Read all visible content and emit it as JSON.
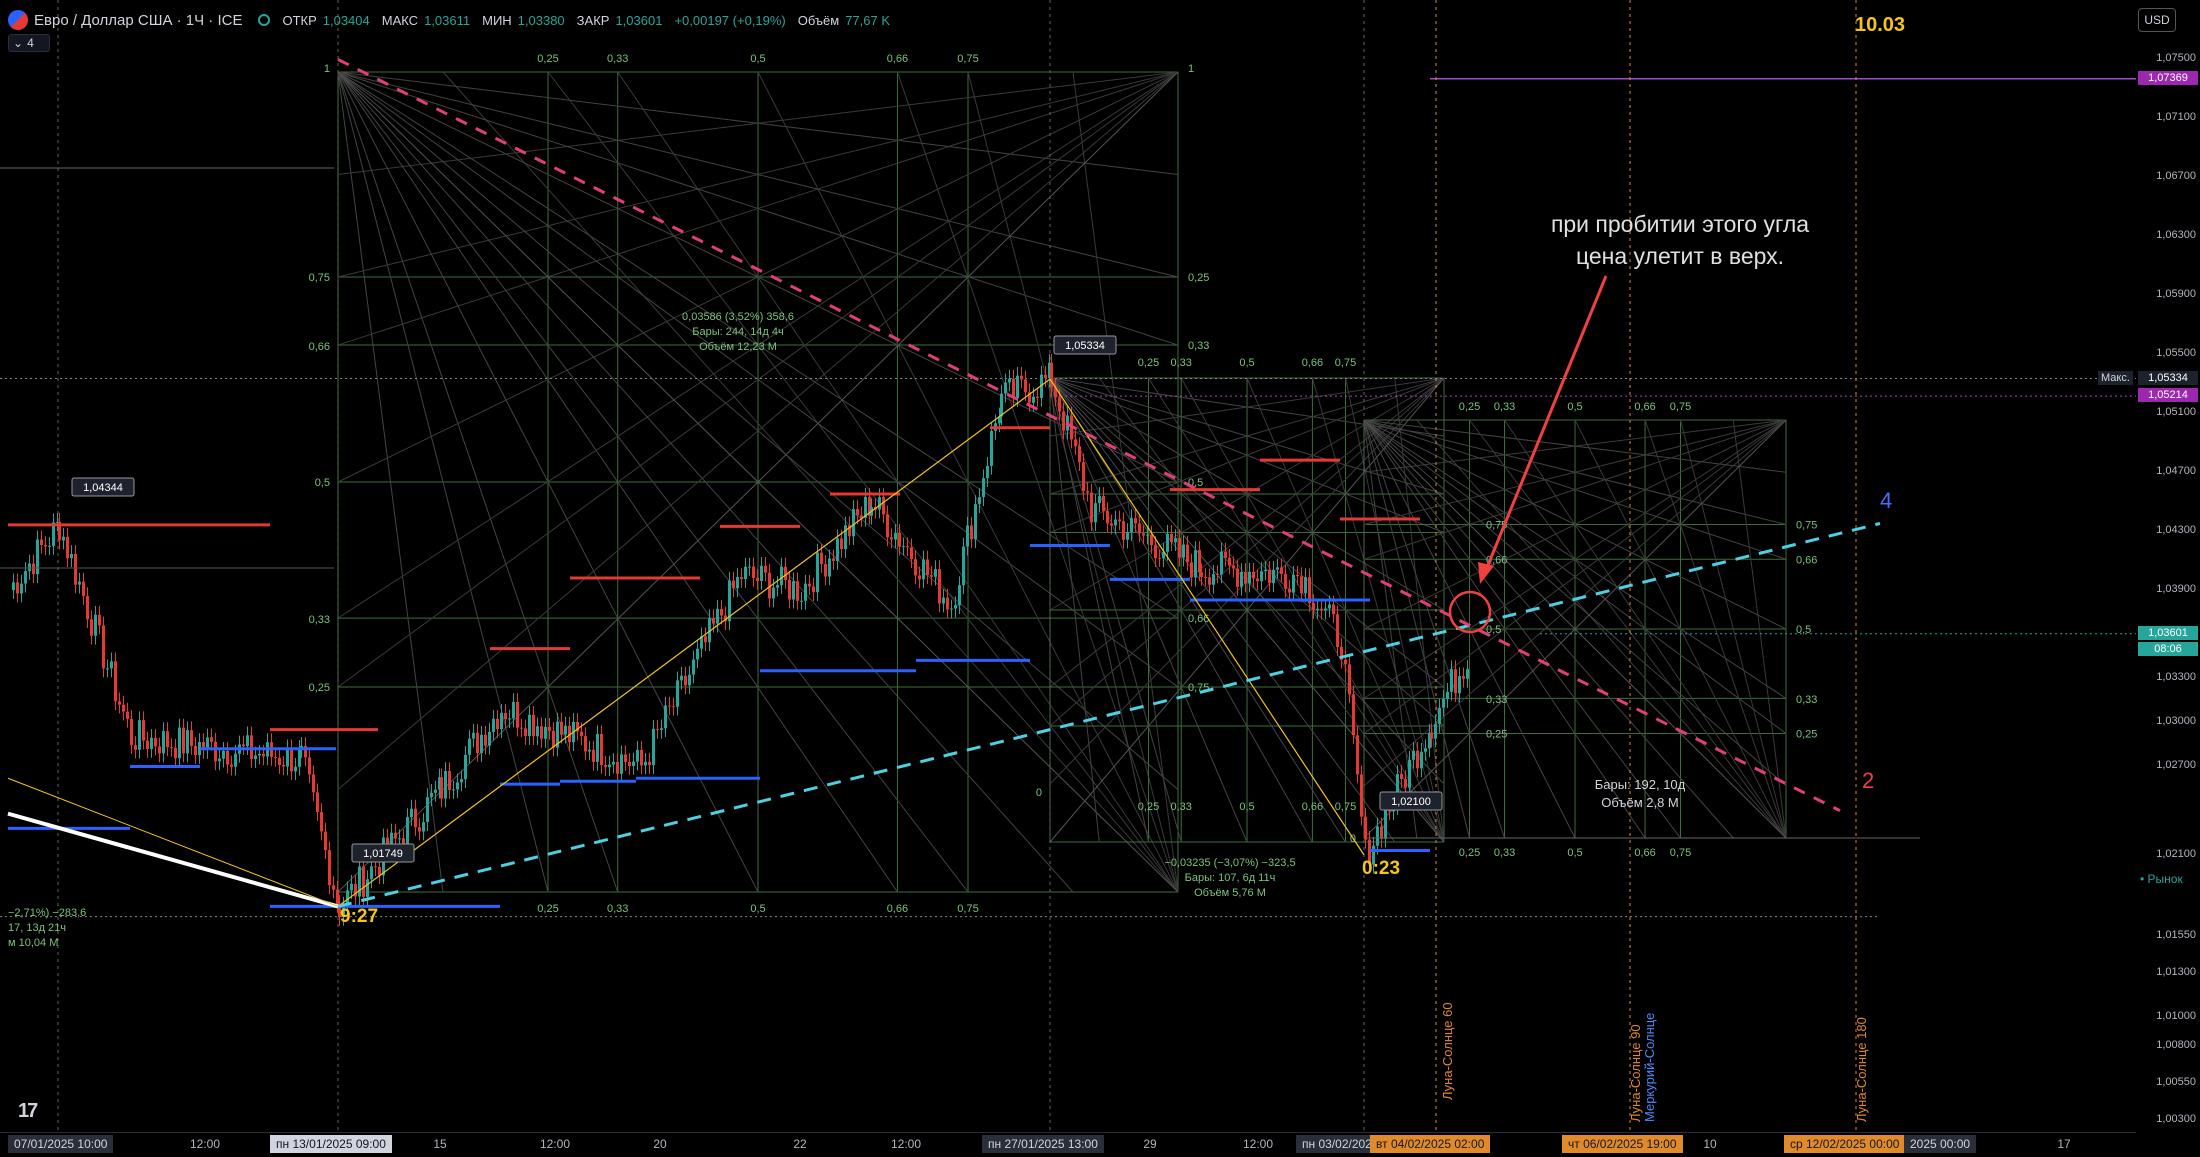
{
  "header": {
    "title": "Евро / Доллар США · 1Ч · ICE",
    "open_label": "ОТКР",
    "open": "1,03404",
    "high_label": "МАКС",
    "high": "1,03611",
    "low_label": "МИН",
    "low": "1,03380",
    "close_label": "ЗАКР",
    "close": "1,03601",
    "change": "+0,00197 (+0,19%)",
    "volume_label": "Объём",
    "volume": "77,67 K",
    "legend_count": "4",
    "currency": "USD"
  },
  "colors": {
    "accent_green": "#26a69a",
    "up_red": "#e53935",
    "support_blue": "#2962ff",
    "gann_green": "#3c6e3c",
    "cyan_trend": "#4dd0e1",
    "pink_trend": "#e0407a",
    "yellow_line": "#f5c518",
    "annotation_red": "#f04040"
  },
  "price_axis": {
    "labels": [
      "1,07500",
      "1,07100",
      "1,06700",
      "1,06300",
      "1,05900",
      "1,05500",
      "1,05100",
      "1,04700",
      "1,04300",
      "1,03900",
      "1,03300",
      "1,03000",
      "1,02700",
      "1,02100",
      "1,01550",
      "1,01300",
      "1,01000",
      "1,00800",
      "1,00550",
      "1,00300"
    ],
    "badges": [
      {
        "text": "1,07369",
        "bg": "#9c27b0",
        "color": "#ffffff"
      },
      {
        "text": "1,05334",
        "bg": "#1e222d",
        "color": "#ffffff"
      },
      {
        "text": "1,05214",
        "bg": "#9c27b0",
        "color": "#ffffff"
      },
      {
        "text": "1,03601",
        "bg": "#26a69a",
        "color": "#ffffff"
      },
      {
        "text": "08:06",
        "bg": "#26a69a",
        "color": "#ffffff"
      }
    ],
    "max_label": "Макс.",
    "market_label": "• Рынок"
  },
  "time_axis": {
    "ticks": [
      "12:00",
      "15",
      "12:00",
      "20",
      "22",
      "12:00",
      "29",
      "12:00",
      "10",
      "17"
    ],
    "boxes": [
      {
        "text": "07/01/2025  10:00",
        "style": "dark"
      },
      {
        "text": "пн 13/01/2025  09:00",
        "style": "light"
      },
      {
        "text": "пн 27/01/2025  13:00",
        "style": "dark"
      },
      {
        "text": "пн 03/02/2025",
        "style": "dark"
      },
      {
        "text": "вт 04/02/2025  02:00",
        "style": "orange"
      },
      {
        "text": "чт 06/02/2025  19:00",
        "style": "orange"
      },
      {
        "text": "ср 12/02/2025  00:00",
        "style": "orange"
      },
      {
        "text": "2025  00:00",
        "style": "dark"
      }
    ]
  },
  "annotations": {
    "main_note": "при пробитии этого угла цена улетит в верх.",
    "date_note": "10.03",
    "label_927": "9:27",
    "label_023": "0:23",
    "label_4": "4",
    "label_2": "2",
    "vertical_labels": [
      "Луна-Солнце 60",
      "Луна-Солнце 90",
      "Меркурий-Солнце",
      "Луна-Солнце 180"
    ]
  },
  "stats": {
    "box1": [
      "0,03586 (3,52%) 358,6",
      "Бары: 244, 14д 4ч",
      "Объём 12,23 M"
    ],
    "box2": [
      "−0,03235 (−3,07%) −323,5",
      "Бары: 107, 6д 11ч",
      "Объём 5,76 M"
    ],
    "box3": [
      "−2,71%) −283,6",
      "17, 13д 21ч",
      "м 10,04 M"
    ],
    "box4": [
      "Бары: 192, 10д",
      "Объём 2,8 M"
    ]
  },
  "chart_data": {
    "type": "candlestick",
    "symbol": "EUR/USD",
    "timeframe": "1H",
    "ylim": [
      1.003,
      1.077
    ],
    "price_callouts": [
      "1,05334",
      "1,04344",
      "1,01749",
      "1,02100"
    ],
    "levels": {
      "max": 1.05334,
      "purple_upper": 1.07369,
      "purple_lower": 1.05214,
      "last": 1.03601,
      "low_swing": 1.01749
    },
    "gann_fractions": [
      "0,25",
      "0,33",
      "0,5",
      "0,66",
      "0,75",
      "1",
      "0"
    ],
    "resistance_segments_red": [
      1.0434,
      1.032,
      1.052,
      1.0475,
      1.0445,
      1.033,
      1.031
    ],
    "support_segments_blue": [
      1.0268,
      1.0212,
      1.0372,
      1.0355,
      1.0395,
      1.0305
    ],
    "trendlines": [
      {
        "name": "",
        "style": "dashed-cyan",
        "from_price": 1.0175,
        "to_price": 1.0435
      },
      {
        "name": "",
        "style": "dashed-pink",
        "from_price": 1.075,
        "to_price": 1.024
      }
    ]
  }
}
